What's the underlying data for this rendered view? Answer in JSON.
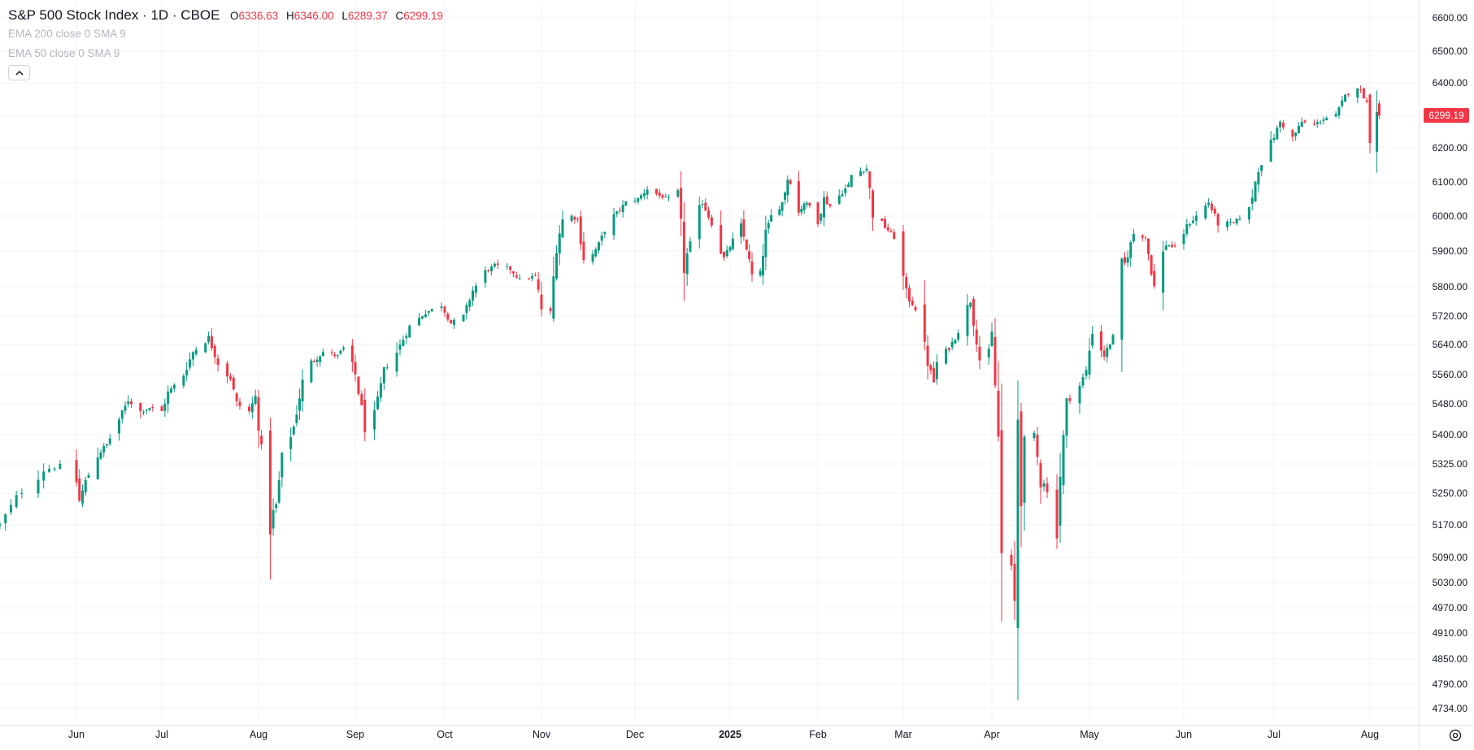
{
  "header": {
    "title": "S&P 500 Stock Index · 1D · CBOE",
    "ohlc": [
      {
        "key": "O",
        "value": "6336.63"
      },
      {
        "key": "H",
        "value": "6346.00"
      },
      {
        "key": "L",
        "value": "6289.37"
      },
      {
        "key": "C",
        "value": "6299.19"
      }
    ],
    "indicators": [
      "EMA 200 close 0 SMA 9",
      "EMA 50 close 0 SMA 9"
    ],
    "collapse_icon": "chevron-up-icon"
  },
  "last_price": "6299.19",
  "colors": {
    "up": "#089981",
    "down": "#f23645",
    "grid": "#f0f3fa",
    "axis": "#e0e3eb"
  },
  "chart_data": {
    "type": "candlestick",
    "title": "S&P 500 Stock Index · 1D · CBOE",
    "y_ticks": [
      "6600.00",
      "6500.00",
      "6400.00",
      "6300.00",
      "6200.00",
      "6100.00",
      "6000.00",
      "5900.00",
      "5800.00",
      "5720.00",
      "5640.00",
      "5560.00",
      "5480.00",
      "5400.00",
      "5325.00",
      "5250.00",
      "5170.00",
      "5090.00",
      "5030.00",
      "4970.00",
      "4910.00",
      "4850.00",
      "4790.00",
      "4734.00"
    ],
    "x_ticks": [
      {
        "label": "Jun",
        "date": "2024-06-03"
      },
      {
        "label": "Jul",
        "date": "2024-07-01"
      },
      {
        "label": "Aug",
        "date": "2024-08-01"
      },
      {
        "label": "Sep",
        "date": "2024-09-03"
      },
      {
        "label": "Oct",
        "date": "2024-10-01"
      },
      {
        "label": "Nov",
        "date": "2024-11-01"
      },
      {
        "label": "Dec",
        "date": "2024-12-02"
      },
      {
        "label": "2025",
        "date": "2025-01-02"
      },
      {
        "label": "Feb",
        "date": "2025-02-03"
      },
      {
        "label": "Mar",
        "date": "2025-03-03"
      },
      {
        "label": "Apr",
        "date": "2025-04-01"
      },
      {
        "label": "May",
        "date": "2025-05-01"
      },
      {
        "label": "Jun",
        "date": "2025-06-02"
      },
      {
        "label": "Jul",
        "date": "2025-07-01"
      },
      {
        "label": "Aug",
        "date": "2025-08-01"
      }
    ],
    "x_range": [
      "2024-05-20",
      "2025-08-22"
    ],
    "close_path": [
      [
        "2024-05-20",
        5170
      ],
      [
        "2024-05-23",
        5240
      ],
      [
        "2024-05-28",
        5310
      ],
      [
        "2024-05-31",
        5320
      ],
      [
        "2024-06-03",
        5280
      ],
      [
        "2024-06-04",
        5230
      ],
      [
        "2024-06-06",
        5280
      ],
      [
        "2024-06-10",
        5350
      ],
      [
        "2024-06-13",
        5375
      ],
      [
        "2024-06-17",
        5440
      ],
      [
        "2024-06-20",
        5490
      ],
      [
        "2024-06-24",
        5460
      ],
      [
        "2024-06-27",
        5470
      ],
      [
        "2024-07-01",
        5460
      ],
      [
        "2024-07-03",
        5510
      ],
      [
        "2024-07-08",
        5560
      ],
      [
        "2024-07-11",
        5620
      ],
      [
        "2024-07-16",
        5660
      ],
      [
        "2024-07-19",
        5590
      ],
      [
        "2024-07-23",
        5550
      ],
      [
        "2024-07-25",
        5480
      ],
      [
        "2024-07-29",
        5460
      ],
      [
        "2024-07-31",
        5500
      ],
      [
        "2024-08-02",
        5360
      ],
      [
        "2024-08-05",
        5180
      ],
      [
        "2024-08-07",
        5220
      ],
      [
        "2024-08-09",
        5340
      ],
      [
        "2024-08-13",
        5420
      ],
      [
        "2024-08-16",
        5540
      ],
      [
        "2024-08-19",
        5590
      ],
      [
        "2024-08-23",
        5620
      ],
      [
        "2024-08-28",
        5610
      ],
      [
        "2024-08-30",
        5630
      ],
      [
        "2024-09-03",
        5560
      ],
      [
        "2024-09-06",
        5420
      ],
      [
        "2024-09-09",
        5450
      ],
      [
        "2024-09-12",
        5570
      ],
      [
        "2024-09-16",
        5620
      ],
      [
        "2024-09-20",
        5690
      ],
      [
        "2024-09-25",
        5730
      ],
      [
        "2024-09-30",
        5750
      ],
      [
        "2024-10-03",
        5700
      ],
      [
        "2024-10-07",
        5720
      ],
      [
        "2024-10-10",
        5790
      ],
      [
        "2024-10-14",
        5840
      ],
      [
        "2024-10-17",
        5860
      ],
      [
        "2024-10-22",
        5850
      ],
      [
        "2024-10-25",
        5820
      ],
      [
        "2024-10-30",
        5830
      ],
      [
        "2024-11-01",
        5740
      ],
      [
        "2024-11-04",
        5730
      ],
      [
        "2024-11-06",
        5920
      ],
      [
        "2024-11-08",
        5990
      ],
      [
        "2024-11-11",
        6000
      ],
      [
        "2024-11-13",
        5990
      ],
      [
        "2024-11-15",
        5880
      ],
      [
        "2024-11-18",
        5890
      ],
      [
        "2024-11-20",
        5920
      ],
      [
        "2024-11-22",
        5960
      ],
      [
        "2024-11-26",
        6010
      ],
      [
        "2024-11-29",
        6040
      ],
      [
        "2024-12-03",
        6050
      ],
      [
        "2024-12-06",
        6080
      ],
      [
        "2024-12-10",
        6060
      ],
      [
        "2024-12-13",
        6050
      ],
      [
        "2024-12-16",
        6070
      ],
      [
        "2024-12-18",
        5860
      ],
      [
        "2024-12-20",
        5920
      ],
      [
        "2024-12-24",
        6040
      ],
      [
        "2024-12-27",
        5980
      ],
      [
        "2024-12-31",
        5880
      ],
      [
        "2025-01-03",
        5930
      ],
      [
        "2025-01-06",
        5970
      ],
      [
        "2025-01-08",
        5910
      ],
      [
        "2025-01-10",
        5830
      ],
      [
        "2025-01-13",
        5840
      ],
      [
        "2025-01-15",
        5950
      ],
      [
        "2025-01-17",
        6000
      ],
      [
        "2025-01-21",
        6040
      ],
      [
        "2025-01-23",
        6110
      ],
      [
        "2025-01-24",
        6100
      ],
      [
        "2025-01-27",
        6010
      ],
      [
        "2025-01-29",
        6040
      ],
      [
        "2025-01-31",
        6030
      ],
      [
        "2025-02-03",
        5990
      ],
      [
        "2025-02-05",
        6050
      ],
      [
        "2025-02-07",
        6030
      ],
      [
        "2025-02-10",
        6060
      ],
      [
        "2025-02-13",
        6090
      ],
      [
        "2025-02-14",
        6120
      ],
      [
        "2025-02-19",
        6140
      ],
      [
        "2025-02-21",
        6010
      ],
      [
        "2025-02-24",
        5980
      ],
      [
        "2025-02-26",
        5960
      ],
      [
        "2025-02-28",
        5940
      ],
      [
        "2025-03-04",
        5780
      ],
      [
        "2025-03-07",
        5740
      ],
      [
        "2025-03-10",
        5620
      ],
      [
        "2025-03-13",
        5540
      ],
      [
        "2025-03-14",
        5590
      ],
      [
        "2025-03-18",
        5630
      ],
      [
        "2025-03-20",
        5660
      ],
      [
        "2025-03-25",
        5760
      ],
      [
        "2025-03-28",
        5600
      ],
      [
        "2025-03-31",
        5620
      ],
      [
        "2025-04-01",
        5670
      ],
      [
        "2025-04-03",
        5390
      ],
      [
        "2025-04-04",
        5090
      ],
      [
        "2025-04-07",
        5060
      ],
      [
        "2025-04-08",
        4980
      ],
      [
        "2025-04-09",
        5460
      ],
      [
        "2025-04-10",
        5260
      ],
      [
        "2025-04-11",
        5360
      ],
      [
        "2025-04-14",
        5400
      ],
      [
        "2025-04-16",
        5280
      ],
      [
        "2025-04-17",
        5280
      ],
      [
        "2025-04-21",
        5160
      ],
      [
        "2025-04-22",
        5300
      ],
      [
        "2025-04-24",
        5480
      ],
      [
        "2025-04-28",
        5530
      ],
      [
        "2025-04-30",
        5570
      ],
      [
        "2025-05-02",
        5680
      ],
      [
        "2025-05-06",
        5610
      ],
      [
        "2025-05-09",
        5660
      ],
      [
        "2025-05-12",
        5840
      ],
      [
        "2025-05-14",
        5890
      ],
      [
        "2025-05-16",
        5950
      ],
      [
        "2025-05-20",
        5940
      ],
      [
        "2025-05-23",
        5800
      ],
      [
        "2025-05-27",
        5920
      ],
      [
        "2025-05-30",
        5910
      ],
      [
        "2025-06-03",
        5970
      ],
      [
        "2025-06-06",
        6000
      ],
      [
        "2025-06-10",
        6040
      ],
      [
        "2025-06-13",
        5980
      ],
      [
        "2025-06-18",
        5980
      ],
      [
        "2025-06-23",
        6020
      ],
      [
        "2025-06-26",
        6140
      ],
      [
        "2025-06-30",
        6210
      ],
      [
        "2025-07-03",
        6280
      ],
      [
        "2025-07-07",
        6230
      ],
      [
        "2025-07-10",
        6280
      ],
      [
        "2025-07-14",
        6270
      ],
      [
        "2025-07-17",
        6290
      ],
      [
        "2025-07-21",
        6300
      ],
      [
        "2025-07-24",
        6360
      ],
      [
        "2025-07-28",
        6390
      ],
      [
        "2025-07-30",
        6360
      ],
      [
        "2025-07-31",
        6340
      ],
      [
        "2025-08-01",
        6240
      ],
      [
        "2025-08-04",
        6330
      ],
      [
        "2025-08-05",
        6299.19
      ]
    ],
    "last": {
      "date": "2025-08-05",
      "open": 6336.63,
      "high": 6346.0,
      "low": 6289.37,
      "close": 6299.19
    }
  }
}
